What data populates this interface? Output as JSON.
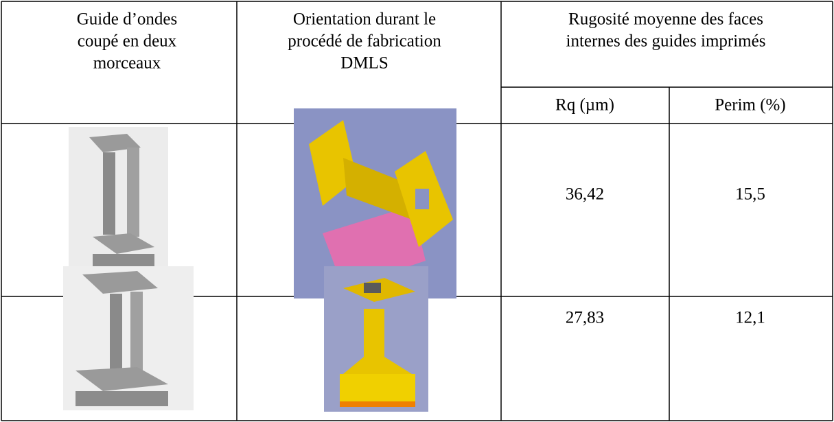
{
  "table": {
    "header": {
      "columns": [
        {
          "lines": [
            "Guide d’ondes",
            "coupé en deux",
            "morceaux"
          ]
        },
        {
          "lines": [
            "Orientation durant le",
            "procédé de fabrication",
            "DMLS"
          ]
        },
        {
          "lines": [
            "Rugosité moyenne des faces",
            "internes des guides imprimés"
          ]
        }
      ],
      "subcolumns": [
        "Rq (µm)",
        "Perim (%)"
      ]
    },
    "rows": [
      [
        "36,42",
        "15,5"
      ],
      [
        "27,83",
        "12,1"
      ]
    ]
  }
}
